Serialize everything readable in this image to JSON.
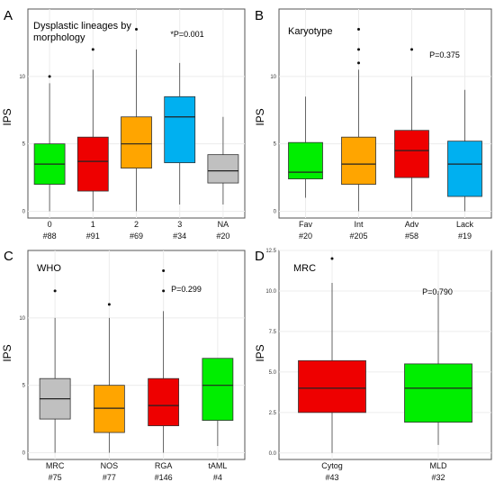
{
  "chart_data": [
    {
      "panel": "A",
      "type": "box",
      "title": [
        "Dysplastic lineages by",
        "morphology"
      ],
      "pvalue": "*P=0.001",
      "ylabel": "IPS",
      "ylim": [
        -0.5,
        15
      ],
      "yticks": [
        0,
        5,
        10
      ],
      "categories": [
        "0",
        "1",
        "2",
        "3",
        "NA"
      ],
      "counts": [
        "#88",
        "#91",
        "#69",
        "#34",
        "#20"
      ],
      "boxes": [
        {
          "min": 0,
          "q1": 2.0,
          "median": 3.5,
          "q3": 5.0,
          "max": 9.5,
          "outliers": [
            10
          ],
          "color": "#00ee00"
        },
        {
          "min": 0,
          "q1": 1.5,
          "median": 3.7,
          "q3": 5.5,
          "max": 10.5,
          "outliers": [
            12
          ],
          "color": "#ee0000"
        },
        {
          "min": 0,
          "q1": 3.2,
          "median": 5.0,
          "q3": 7.0,
          "max": 12.0,
          "outliers": [
            13.5
          ],
          "color": "#ffa500"
        },
        {
          "min": 0.5,
          "q1": 3.6,
          "median": 7.0,
          "q3": 8.5,
          "max": 11.0,
          "outliers": [],
          "color": "#00b0f0"
        },
        {
          "min": 0.5,
          "q1": 2.1,
          "median": 3.0,
          "q3": 4.2,
          "max": 7.0,
          "outliers": [],
          "color": "#c0c0c0"
        }
      ]
    },
    {
      "panel": "B",
      "type": "box",
      "title": [
        "Karyotype"
      ],
      "pvalue": "P=0.375",
      "ylabel": "IPS",
      "ylim": [
        -0.5,
        15
      ],
      "yticks": [
        0,
        5,
        10
      ],
      "categories": [
        "Fav",
        "Int",
        "Adv",
        "Lack"
      ],
      "counts": [
        "#20",
        "#205",
        "#58",
        "#19"
      ],
      "boxes": [
        {
          "min": 1.0,
          "q1": 2.4,
          "median": 2.9,
          "q3": 5.1,
          "max": 8.5,
          "outliers": [],
          "color": "#00ee00"
        },
        {
          "min": 0,
          "q1": 2.0,
          "median": 3.5,
          "q3": 5.5,
          "max": 10.5,
          "outliers": [
            11,
            12,
            13.5
          ],
          "color": "#ffa500"
        },
        {
          "min": 0,
          "q1": 2.5,
          "median": 4.5,
          "q3": 6.0,
          "max": 10.0,
          "outliers": [
            12
          ],
          "color": "#ee0000"
        },
        {
          "min": 0,
          "q1": 1.1,
          "median": 3.5,
          "q3": 5.2,
          "max": 9.0,
          "outliers": [],
          "color": "#00b0f0"
        }
      ]
    },
    {
      "panel": "C",
      "type": "box",
      "title": [
        "WHO"
      ],
      "pvalue": "P=0.299",
      "ylabel": "IPS",
      "ylim": [
        -0.5,
        15
      ],
      "yticks": [
        0,
        5,
        10
      ],
      "categories": [
        "MRC",
        "NOS",
        "RGA",
        "tAML"
      ],
      "counts": [
        "#75",
        "#77",
        "#146",
        "#4"
      ],
      "boxes": [
        {
          "min": 0,
          "q1": 2.5,
          "median": 4.0,
          "q3": 5.5,
          "max": 10.0,
          "outliers": [
            12
          ],
          "color": "#c0c0c0"
        },
        {
          "min": 0,
          "q1": 1.5,
          "median": 3.3,
          "q3": 5.0,
          "max": 10.0,
          "outliers": [
            11
          ],
          "color": "#ffa500"
        },
        {
          "min": 0,
          "q1": 2.0,
          "median": 3.5,
          "q3": 5.5,
          "max": 10.5,
          "outliers": [
            12,
            13.5
          ],
          "color": "#ee0000"
        },
        {
          "min": 0.5,
          "q1": 2.4,
          "median": 5.0,
          "q3": 7.0,
          "max": 7.0,
          "outliers": [],
          "color": "#00ee00"
        }
      ]
    },
    {
      "panel": "D",
      "type": "box",
      "title": [
        "MRC"
      ],
      "pvalue": "P=0.790",
      "ylabel": "IPS",
      "ylim": [
        -0.4,
        12.5
      ],
      "yticks": [
        0.0,
        2.5,
        5.0,
        7.5,
        10.0,
        12.5
      ],
      "ytick_labels": [
        "0.0",
        "2.5",
        "5.0",
        "7.5",
        "10.0",
        "12.5"
      ],
      "categories": [
        "Cytog",
        "MLD"
      ],
      "counts": [
        "#43",
        "#32"
      ],
      "boxes": [
        {
          "min": 0,
          "q1": 2.5,
          "median": 4.0,
          "q3": 5.7,
          "max": 10.5,
          "outliers": [
            12
          ],
          "color": "#ee0000"
        },
        {
          "min": 0.5,
          "q1": 1.9,
          "median": 4.0,
          "q3": 5.5,
          "max": 10.0,
          "outliers": [],
          "color": "#00ee00"
        }
      ]
    }
  ]
}
